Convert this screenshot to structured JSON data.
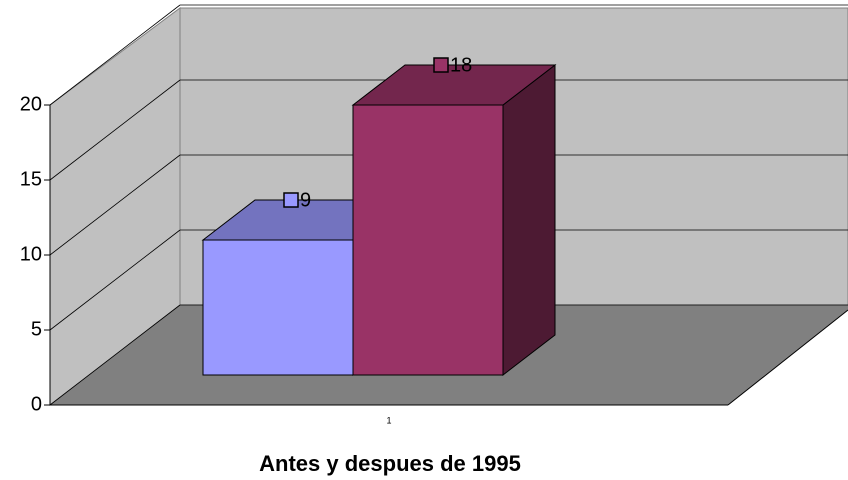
{
  "chart_data": {
    "type": "bar3d",
    "categories": [
      "1"
    ],
    "series": [
      {
        "color": "#9999ff",
        "values": [
          9
        ]
      },
      {
        "color": "#993366",
        "values": [
          18
        ]
      }
    ],
    "ylim": [
      0,
      20
    ],
    "yticks": [
      0,
      5,
      10,
      15,
      20
    ],
    "grid": true,
    "x_label": "Antes y despues de 1995"
  }
}
